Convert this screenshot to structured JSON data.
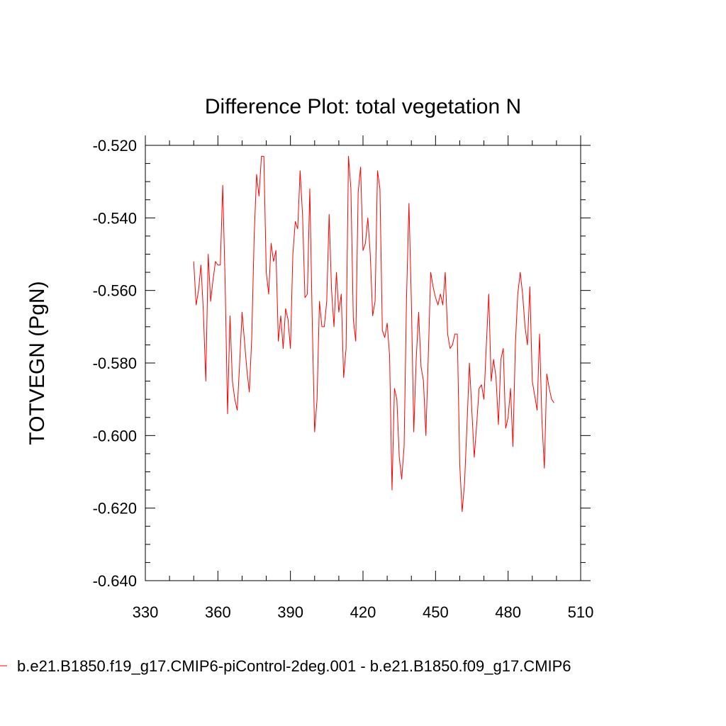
{
  "chart_data": {
    "type": "line",
    "title": "Difference Plot: total vegetation N",
    "xlabel": "",
    "ylabel": "TOTVEGN  (PgN)",
    "xlim": [
      330,
      510
    ],
    "ylim": [
      -0.64,
      -0.52
    ],
    "xticks": [
      330,
      360,
      390,
      420,
      450,
      480,
      510
    ],
    "xtick_labels": [
      "330",
      "360",
      "390",
      "420",
      "450",
      "480",
      "510"
    ],
    "yticks": [
      -0.64,
      -0.62,
      -0.6,
      -0.58,
      -0.56,
      -0.54,
      -0.52
    ],
    "ytick_labels": [
      "-0.640",
      "-0.620",
      "-0.600",
      "-0.580",
      "-0.560",
      "-0.540",
      "-0.520"
    ],
    "grid": false,
    "legend_position": "bottom",
    "series": [
      {
        "name": "b.e21.B1850.f19_g17.CMIP6-piControl-2deg.001 - b.e21.B1850.f09_g17.CMIP6",
        "color": "#ff0000",
        "x": [
          350,
          351,
          352,
          353,
          354,
          355,
          356,
          357,
          358,
          359,
          360,
          361,
          362,
          363,
          364,
          365,
          366,
          367,
          368,
          369,
          370,
          371,
          372,
          373,
          374,
          375,
          376,
          377,
          378,
          379,
          380,
          381,
          382,
          383,
          384,
          385,
          386,
          387,
          388,
          389,
          390,
          391,
          392,
          393,
          394,
          395,
          396,
          397,
          398,
          399,
          400,
          401,
          402,
          403,
          404,
          405,
          406,
          407,
          408,
          409,
          410,
          411,
          412,
          413,
          414,
          415,
          416,
          417,
          418,
          419,
          420,
          421,
          422,
          423,
          424,
          425,
          426,
          427,
          428,
          429,
          430,
          431,
          432,
          433,
          434,
          435,
          436,
          437,
          438,
          439,
          440,
          441,
          442,
          443,
          444,
          445,
          446,
          447,
          448,
          449,
          450,
          451,
          452,
          453,
          454,
          455,
          456,
          457,
          458,
          459,
          460,
          461,
          462,
          463,
          464,
          465,
          466,
          467,
          468,
          469,
          470,
          471,
          472,
          473,
          474,
          475,
          476,
          477,
          478,
          479,
          480,
          481,
          482,
          483,
          484,
          485,
          486,
          487,
          488,
          489,
          490,
          491,
          492,
          493,
          494,
          495,
          496,
          497,
          498,
          499
        ],
        "y": [
          -0.552,
          -0.564,
          -0.56,
          -0.553,
          -0.566,
          -0.585,
          -0.55,
          -0.563,
          -0.557,
          -0.552,
          -0.553,
          -0.553,
          -0.531,
          -0.558,
          -0.594,
          -0.567,
          -0.585,
          -0.59,
          -0.593,
          -0.58,
          -0.566,
          -0.574,
          -0.582,
          -0.588,
          -0.573,
          -0.545,
          -0.528,
          -0.534,
          -0.523,
          -0.523,
          -0.555,
          -0.561,
          -0.547,
          -0.552,
          -0.549,
          -0.574,
          -0.567,
          -0.576,
          -0.565,
          -0.568,
          -0.576,
          -0.55,
          -0.541,
          -0.543,
          -0.527,
          -0.539,
          -0.562,
          -0.561,
          -0.532,
          -0.568,
          -0.599,
          -0.59,
          -0.563,
          -0.57,
          -0.57,
          -0.563,
          -0.539,
          -0.56,
          -0.57,
          -0.555,
          -0.566,
          -0.561,
          -0.584,
          -0.576,
          -0.523,
          -0.532,
          -0.568,
          -0.574,
          -0.533,
          -0.526,
          -0.549,
          -0.547,
          -0.54,
          -0.55,
          -0.567,
          -0.563,
          -0.527,
          -0.532,
          -0.571,
          -0.573,
          -0.569,
          -0.578,
          -0.615,
          -0.587,
          -0.59,
          -0.606,
          -0.612,
          -0.603,
          -0.562,
          -0.536,
          -0.563,
          -0.599,
          -0.579,
          -0.566,
          -0.581,
          -0.585,
          -0.6,
          -0.578,
          -0.555,
          -0.559,
          -0.562,
          -0.564,
          -0.561,
          -0.564,
          -0.555,
          -0.572,
          -0.576,
          -0.575,
          -0.572,
          -0.572,
          -0.608,
          -0.621,
          -0.613,
          -0.597,
          -0.58,
          -0.593,
          -0.606,
          -0.597,
          -0.587,
          -0.586,
          -0.59,
          -0.575,
          -0.561,
          -0.585,
          -0.579,
          -0.584,
          -0.597,
          -0.579,
          -0.576,
          -0.598,
          -0.595,
          -0.587,
          -0.603,
          -0.575,
          -0.561,
          -0.555,
          -0.561,
          -0.57,
          -0.575,
          -0.559,
          -0.585,
          -0.589,
          -0.593,
          -0.572,
          -0.596,
          -0.609,
          -0.583,
          -0.587,
          -0.59,
          -0.591
        ]
      }
    ]
  }
}
